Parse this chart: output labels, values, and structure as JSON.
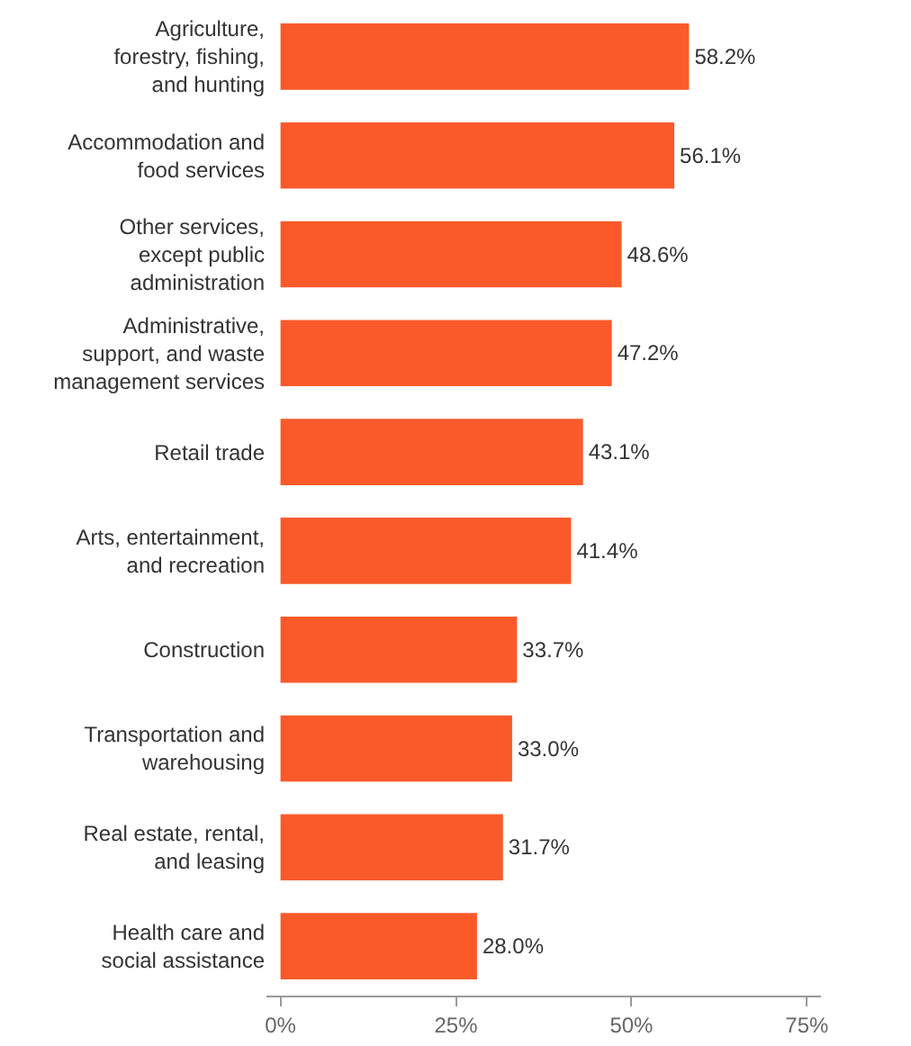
{
  "chart_data": {
    "type": "bar",
    "orientation": "horizontal",
    "categories": [
      "Agriculture,\nforestry, fishing,\nand hunting",
      "Accommodation and\nfood services",
      "Other services,\nexcept public\nadministration",
      "Administrative,\nsupport, and waste\nmanagement services",
      "Retail trade",
      "Arts, entertainment,\nand recreation",
      "Construction",
      "Transportation and\nwarehousing",
      "Real estate, rental,\nand leasing",
      "Health care and\nsocial assistance"
    ],
    "values": [
      58.2,
      56.1,
      48.6,
      47.2,
      43.1,
      41.4,
      33.7,
      33.0,
      31.7,
      28.0
    ],
    "value_labels": [
      "58.2%",
      "56.1%",
      "48.6%",
      "47.2%",
      "43.1%",
      "41.4%",
      "33.7%",
      "33.0%",
      "31.7%",
      "28.0%"
    ],
    "color": "#fa5a2a",
    "xlim": [
      -2,
      77
    ],
    "xticks": [
      {
        "value": 0,
        "label": "0%"
      },
      {
        "value": 25,
        "label": "25%"
      },
      {
        "value": 50,
        "label": "50%"
      },
      {
        "value": 75,
        "label": "75%"
      }
    ],
    "grid": false
  }
}
